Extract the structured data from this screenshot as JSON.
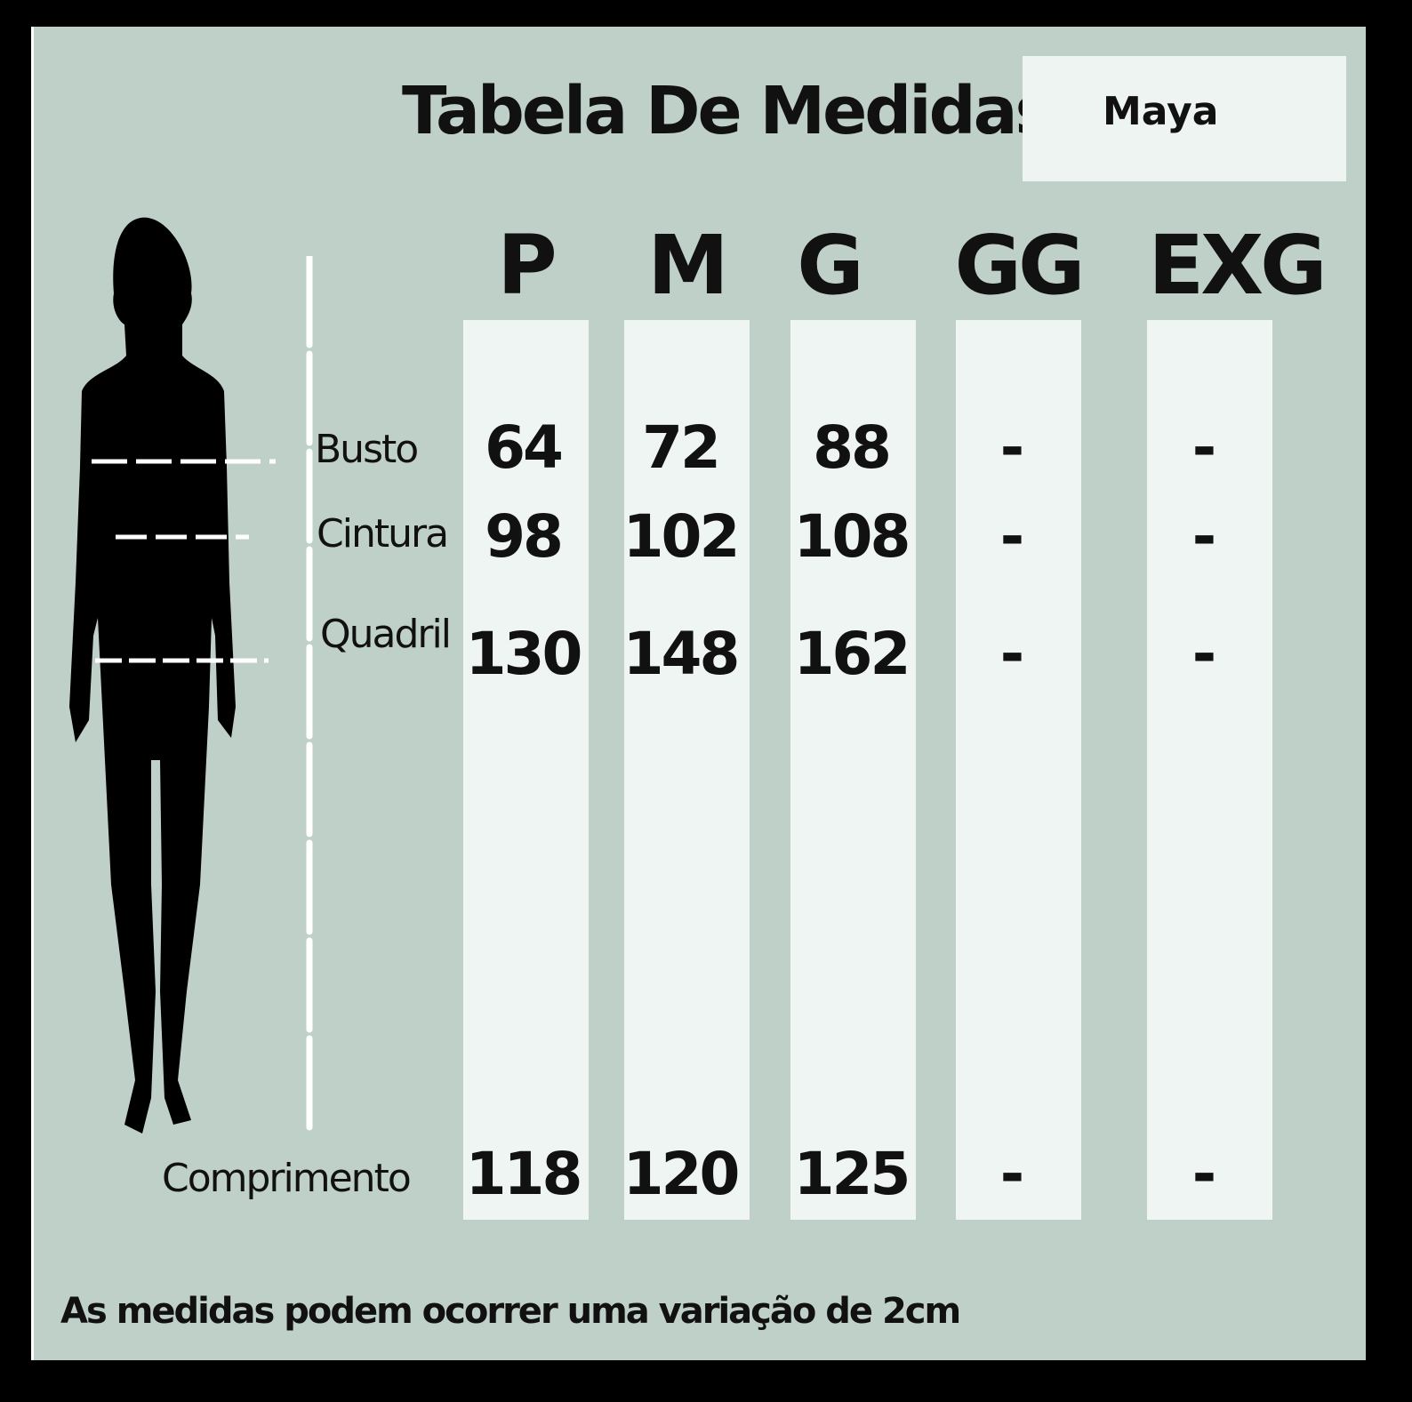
{
  "title": "Tabela De Medidas",
  "model_name": "Maya",
  "sizes": [
    "P",
    "M",
    "G",
    "GG",
    "EXG"
  ],
  "rows": [
    {
      "label": "Busto",
      "values": [
        "64",
        "72",
        "88",
        "-",
        "-"
      ]
    },
    {
      "label": "Cintura",
      "values": [
        "98",
        "102",
        "108",
        "-",
        "-"
      ]
    },
    {
      "label": "Quadril",
      "values": [
        "130",
        "148",
        "162",
        "-",
        "-"
      ]
    },
    {
      "label": "Comprimento",
      "values": [
        "118",
        "120",
        "125",
        "-",
        "-"
      ]
    }
  ],
  "footer": "As medidas podem ocorrer uma variação de 2cm",
  "colors": {
    "background": "#bfd0c8",
    "column": "#eef5f2",
    "text": "#111111"
  }
}
